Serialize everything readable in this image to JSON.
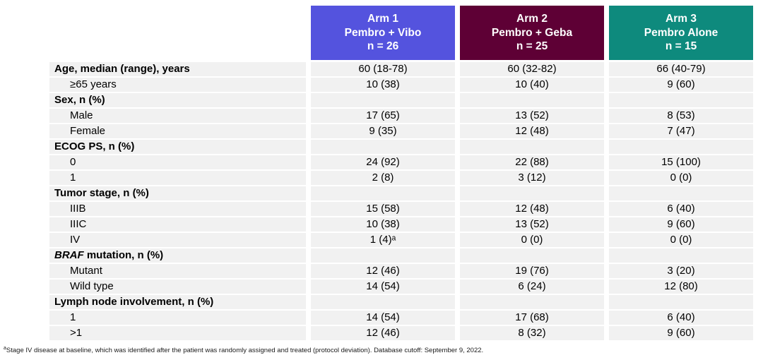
{
  "header": {
    "columns": [
      {
        "arm": "Arm 1",
        "treatment": "Pembro + Vibo",
        "n": "n = 26",
        "color": "#5453de"
      },
      {
        "arm": "Arm 2",
        "treatment": "Pembro + Geba",
        "n": "n = 25",
        "color": "#5e0035"
      },
      {
        "arm": "Arm 3",
        "treatment": "Pembro Alone",
        "n": "n = 15",
        "color": "#0e8a7d"
      }
    ]
  },
  "table": {
    "row_background": "#f1f1f1",
    "rows": [
      {
        "label": "Age, median (range), years",
        "style": "category",
        "values": [
          "60 (18-78)",
          "60 (32-82)",
          "66 (40-79)"
        ]
      },
      {
        "label": "≥65 years",
        "style": "sub",
        "values": [
          "10 (38)",
          "10 (40)",
          "9 (60)"
        ]
      },
      {
        "label": "Sex, n (%)",
        "style": "category",
        "values": [
          "",
          "",
          ""
        ]
      },
      {
        "label": "Male",
        "style": "sub",
        "values": [
          "17 (65)",
          "13 (52)",
          "8 (53)"
        ]
      },
      {
        "label": "Female",
        "style": "sub",
        "values": [
          "9 (35)",
          "12 (48)",
          "7 (47)"
        ]
      },
      {
        "label": "ECOG PS, n (%)",
        "style": "category",
        "values": [
          "",
          "",
          ""
        ]
      },
      {
        "label": "0",
        "style": "sub",
        "values": [
          "24 (92)",
          "22 (88)",
          "15 (100)"
        ]
      },
      {
        "label": "1",
        "style": "sub",
        "values": [
          "2 (8)",
          "3 (12)",
          "0 (0)"
        ]
      },
      {
        "label": "Tumor stage, n (%)",
        "style": "category",
        "values": [
          "",
          "",
          ""
        ]
      },
      {
        "label": "IIIB",
        "style": "sub",
        "values": [
          "15 (58)",
          "12 (48)",
          "6 (40)"
        ]
      },
      {
        "label": "IIIC",
        "style": "sub",
        "values": [
          "10 (38)",
          "13 (52)",
          "9 (60)"
        ]
      },
      {
        "label": "IV",
        "style": "sub",
        "values": [
          "1 (4)ᵃ",
          "0 (0)",
          "0 (0)"
        ]
      },
      {
        "label_italic": "BRAF",
        "label": " mutation, n (%)",
        "style": "category",
        "values": [
          "",
          "",
          ""
        ]
      },
      {
        "label": "Mutant",
        "style": "sub",
        "values": [
          "12 (46)",
          "19 (76)",
          "3 (20)"
        ]
      },
      {
        "label": "Wild type",
        "style": "sub",
        "values": [
          "14 (54)",
          "6 (24)",
          "12 (80)"
        ]
      },
      {
        "label": "Lymph node involvement, n (%)",
        "style": "category",
        "values": [
          "",
          "",
          ""
        ]
      },
      {
        "label": "1",
        "style": "sub",
        "values": [
          "14 (54)",
          "17 (68)",
          "6 (40)"
        ]
      },
      {
        "label": ">1",
        "style": "sub",
        "values": [
          "12 (46)",
          "8 (32)",
          "9 (60)"
        ]
      }
    ]
  },
  "footnote": {
    "sup": "a",
    "text": "Stage IV disease at baseline, which was identified after the patient was randomly assigned and treated (protocol deviation). Database cutoff: September 9, 2022."
  }
}
